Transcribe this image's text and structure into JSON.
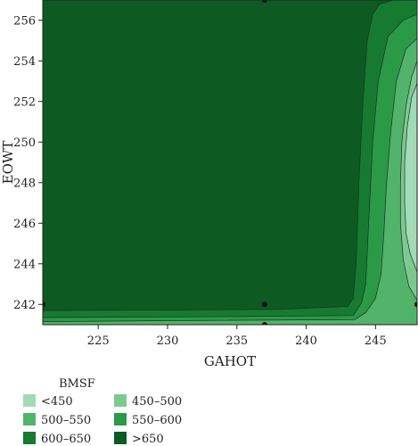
{
  "chart_data": {
    "type": "contour",
    "title": "",
    "xlabel": "GAHOT",
    "ylabel": "EOWT",
    "xlim": [
      221,
      248
    ],
    "ylim": [
      241,
      257
    ],
    "xticks": [
      225,
      230,
      235,
      240,
      245
    ],
    "yticks": [
      242,
      244,
      246,
      248,
      250,
      252,
      254,
      256
    ],
    "grid": false,
    "legend": {
      "title": "BMSF",
      "placement": "bottom-left",
      "entries": [
        {
          "label": "<450",
          "color": "#a1dbb5"
        },
        {
          "label": "450–500",
          "color": "#7cc98f"
        },
        {
          "label": "500–550",
          "color": "#52b36a"
        },
        {
          "label": "550–600",
          "color": "#2a9a47"
        },
        {
          "label": "600–650",
          "color": "#177a31"
        },
        {
          "label": ">650",
          "color": "#0d5a23"
        }
      ]
    },
    "levels": [
      {
        "range": ">650",
        "color": "#0d5a23",
        "outline": [
          [
            221,
            257
          ],
          [
            248,
            257
          ],
          [
            248,
            241
          ],
          [
            221,
            241
          ]
        ]
      },
      {
        "range": "600–650",
        "color": "#177a31",
        "outline": [
          [
            248,
            257
          ],
          [
            246.3,
            257
          ],
          [
            245.3,
            256.8
          ],
          [
            244.8,
            256.3
          ],
          [
            244.4,
            255
          ],
          [
            244.1,
            252
          ],
          [
            243.8,
            248
          ],
          [
            243.6,
            244
          ],
          [
            243.4,
            242.3
          ],
          [
            243,
            241.9
          ],
          [
            238,
            241.75
          ],
          [
            221,
            241.7
          ],
          [
            221,
            241
          ],
          [
            248,
            241
          ]
        ]
      },
      {
        "range": "550–600",
        "color": "#2a9a47",
        "outline": [
          [
            248,
            256.3
          ],
          [
            247,
            256
          ],
          [
            245.9,
            255.2
          ],
          [
            245.2,
            253
          ],
          [
            244.8,
            250
          ],
          [
            244.5,
            246
          ],
          [
            244.3,
            243
          ],
          [
            244,
            242.1
          ],
          [
            243.4,
            241.45
          ],
          [
            235,
            241.4
          ],
          [
            221,
            241.35
          ],
          [
            221,
            241
          ],
          [
            248,
            241
          ]
        ]
      },
      {
        "range": "500–550",
        "color": "#52b36a",
        "outline": [
          [
            248,
            255.1
          ],
          [
            247.2,
            254.6
          ],
          [
            246.5,
            253
          ],
          [
            246.1,
            250.5
          ],
          [
            245.8,
            248
          ],
          [
            245.6,
            245.5
          ],
          [
            245.4,
            243.5
          ],
          [
            245,
            242.3
          ],
          [
            244.3,
            241.6
          ],
          [
            243.5,
            241.25
          ],
          [
            230,
            241.2
          ],
          [
            221,
            241.15
          ],
          [
            221,
            241
          ],
          [
            248,
            241
          ]
        ]
      },
      {
        "range": "450–500",
        "color": "#7cc98f",
        "outline": [
          [
            248,
            254
          ],
          [
            247.6,
            253.2
          ],
          [
            247.2,
            251.8
          ],
          [
            246.9,
            250
          ],
          [
            246.8,
            248
          ],
          [
            246.8,
            246
          ],
          [
            247,
            244.2
          ],
          [
            247.4,
            242.9
          ],
          [
            248,
            242.2
          ]
        ]
      },
      {
        "range": "<450",
        "color": "#a1dbb5",
        "outline": [
          [
            248,
            252.9
          ],
          [
            247.6,
            252.2
          ],
          [
            247.3,
            250.8
          ],
          [
            247.1,
            249
          ],
          [
            247.1,
            247
          ],
          [
            247.2,
            245.5
          ],
          [
            247.5,
            244.5
          ],
          [
            248,
            243.6
          ]
        ]
      }
    ],
    "design_points": [
      {
        "x": 237,
        "y": 257
      },
      {
        "x": 221,
        "y": 242
      },
      {
        "x": 237,
        "y": 242
      },
      {
        "x": 248,
        "y": 242
      },
      {
        "x": 237,
        "y": 241
      }
    ]
  }
}
